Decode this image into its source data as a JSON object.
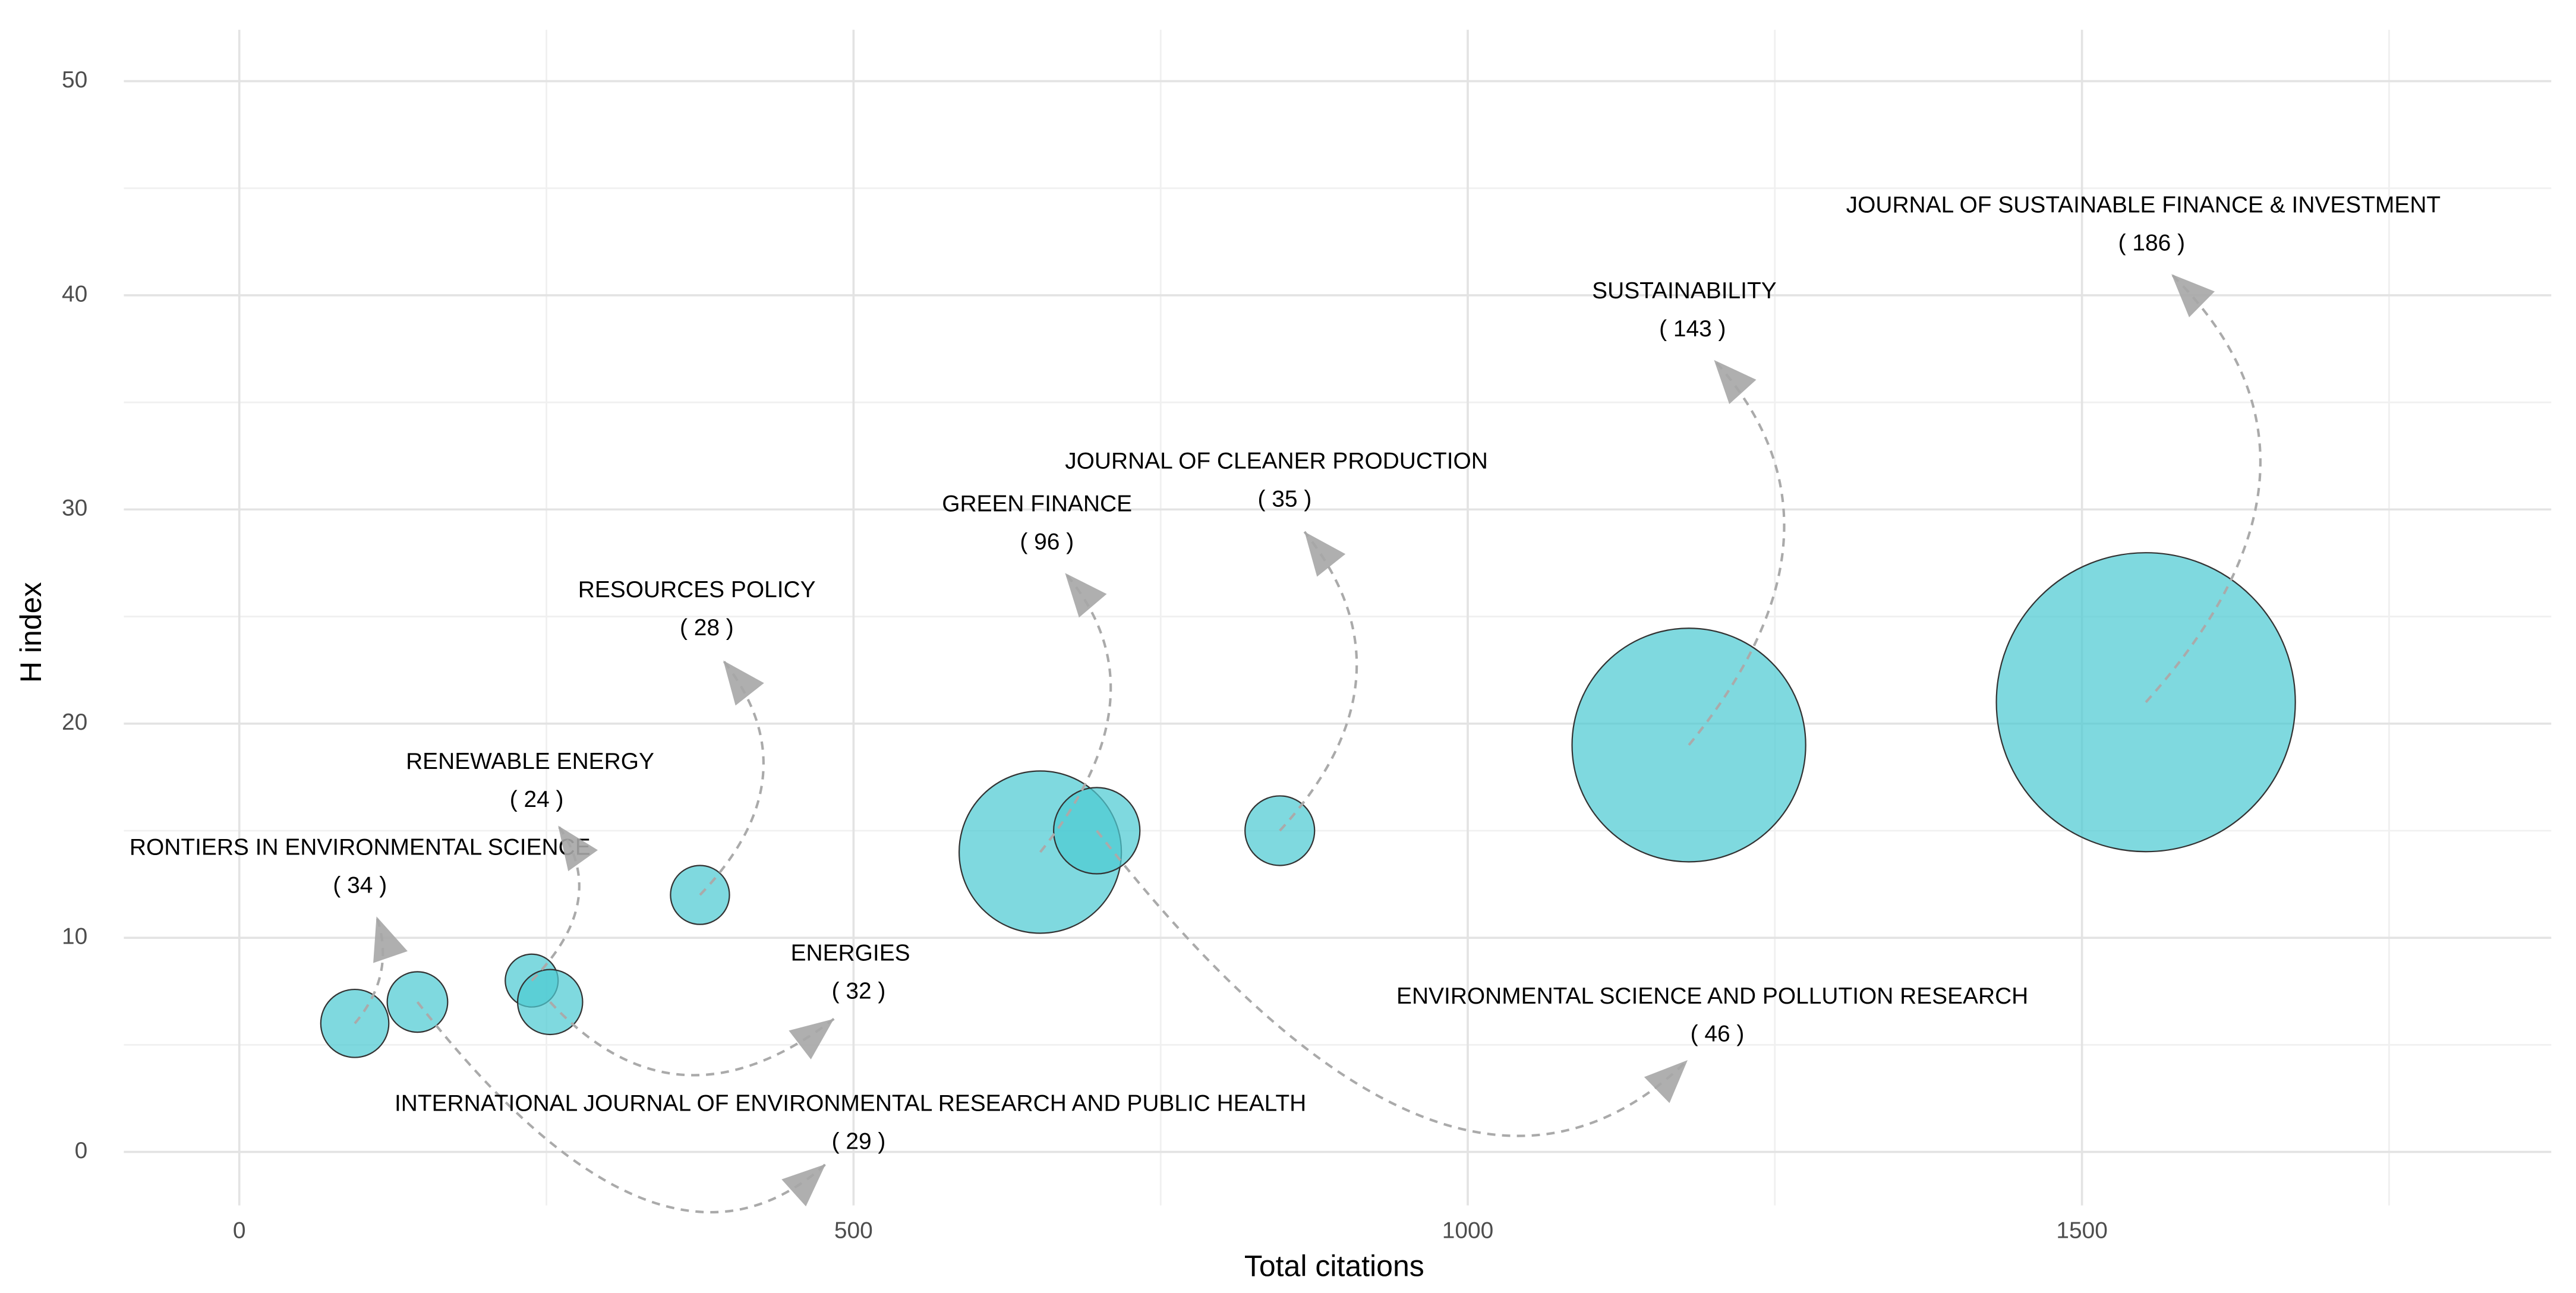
{
  "chart_data": {
    "type": "bubble",
    "x_label": "Total citations",
    "y_label": "H index",
    "xlim": [
      -94,
      1882
    ],
    "ylim": [
      -2.5,
      52.4
    ],
    "xticks": [
      0,
      500,
      1000,
      1500
    ],
    "yticks": [
      0,
      10,
      20,
      30,
      40,
      50
    ],
    "grid": true,
    "color": "#4ecbd2",
    "points": [
      {
        "name": "RONTIERS IN ENVIRONMENTAL SCIENCE",
        "x": 94,
        "y": 6,
        "size": 34,
        "size_label": "( 34 )"
      },
      {
        "name": "INTERNATIONAL JOURNAL OF ENVIRONMENTAL RESEARCH AND PUBLIC HEALTH",
        "x": 145,
        "y": 7,
        "size": 29,
        "size_label": "( 29 )"
      },
      {
        "name": "RENEWABLE ENERGY",
        "x": 238,
        "y": 8,
        "size": 24,
        "size_label": "( 24 )"
      },
      {
        "name": "ENERGIES",
        "x": 253,
        "y": 7,
        "size": 32,
        "size_label": "( 32 )"
      },
      {
        "name": "RESOURCES POLICY",
        "x": 375,
        "y": 12,
        "size": 28,
        "size_label": "( 28 )"
      },
      {
        "name": "GREEN FINANCE",
        "x": 652,
        "y": 14,
        "size": 96,
        "size_label": "( 96 )"
      },
      {
        "name": "ENVIRONMENTAL SCIENCE AND POLLUTION RESEARCH",
        "x": 698,
        "y": 15,
        "size": 46,
        "size_label": "( 46 )"
      },
      {
        "name": "JOURNAL OF CLEANER PRODUCTION",
        "x": 847,
        "y": 15,
        "size": 35,
        "size_label": "( 35 )"
      },
      {
        "name": "SUSTAINABILITY",
        "x": 1180,
        "y": 19,
        "size": 143,
        "size_label": "( 143 )"
      },
      {
        "name": "JOURNAL OF SUSTAINABLE FINANCE & INVESTMENT",
        "x": 1552,
        "y": 21,
        "size": 186,
        "size_label": "( 186 )"
      }
    ]
  }
}
